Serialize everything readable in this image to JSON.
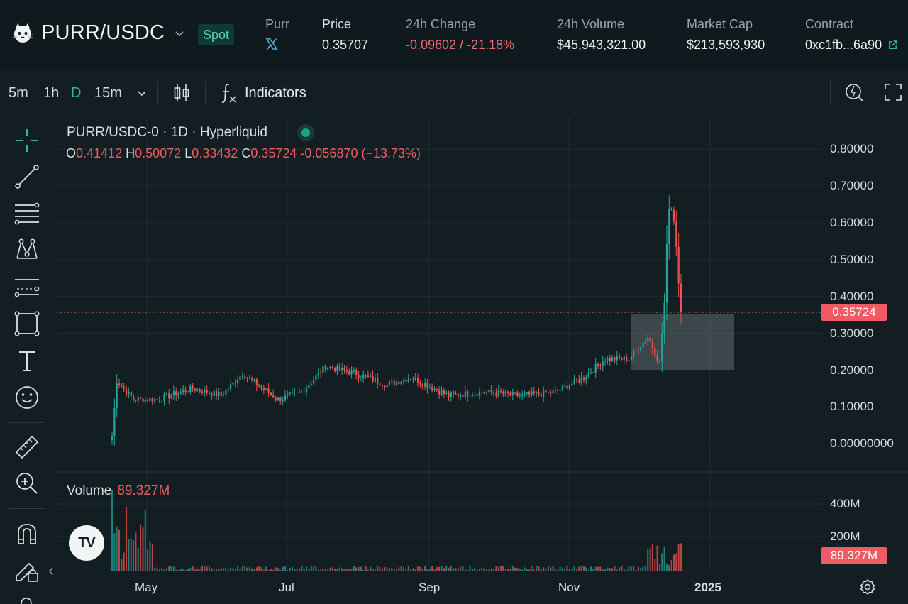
{
  "header": {
    "pair": "PURR/USDC",
    "market_type": "Spot",
    "purr_label": "Purr",
    "price_label": "Price",
    "price_value": "0.35707",
    "change_label": "24h Change",
    "change_value": "-0.09602 / -21.18%",
    "volume_label": "24h Volume",
    "volume_value": "$45,943,321.00",
    "cap_label": "Market Cap",
    "cap_value": "$213,593,930",
    "contract_label": "Contract",
    "contract_value": "0xc1fb...6a90"
  },
  "toolbar": {
    "timeframes": [
      "5m",
      "1h",
      "D",
      "15m"
    ],
    "active_timeframe": "D",
    "indicators_label": "Indicators"
  },
  "tools": [
    "crosshair-icon",
    "trendline-icon",
    "fib-retracement-icon",
    "pattern-icon",
    "prediction-icon",
    "rectangle-icon",
    "text-icon",
    "emoji-icon",
    "ruler-icon",
    "zoom-in-icon",
    "magnet-icon",
    "lock-drawings-icon"
  ],
  "legend": {
    "title": "PURR/USDC-0 · 1D · Hyperliquid",
    "o_label": "O",
    "o": "0.41412",
    "h_label": "H",
    "h": "0.50072",
    "l_label": "L",
    "l": "0.33432",
    "c_label": "C",
    "c": "0.35724",
    "change": "-0.056870 (−13.73%)"
  },
  "volume_legend": {
    "label": "Volume",
    "value": "89.327M"
  },
  "price_tag": "0.35724",
  "volume_tag": "89.327M",
  "colors": {
    "up": "#26a69a",
    "down": "#ef5350",
    "accent": "#2fb7a0"
  },
  "chart_data": {
    "type": "candlestick",
    "title": "PURR/USDC-0 · 1D · Hyperliquid",
    "y_ticks": [
      "0.80000",
      "0.70000",
      "0.60000",
      "0.50000",
      "0.40000",
      "0.30000",
      "0.20000",
      "0.10000",
      "0.00000000"
    ],
    "ylim": [
      0,
      0.8
    ],
    "x_ticks": [
      "May",
      "Jul",
      "Sep",
      "Nov",
      "2025"
    ],
    "volume_ticks": [
      "400M",
      "200M"
    ],
    "last_price": 0.35724,
    "series": [
      {
        "name": "PURR/USDC-0",
        "approx_close_path": [
          [
            "Apr 16",
            0.02
          ],
          [
            "Apr 18",
            0.17
          ],
          [
            "Apr 25",
            0.12
          ],
          [
            "May 5",
            0.12
          ],
          [
            "May 20",
            0.15
          ],
          [
            "Jun 1",
            0.13
          ],
          [
            "Jun 10",
            0.19
          ],
          [
            "Jun 25",
            0.12
          ],
          [
            "Jul 5",
            0.14
          ],
          [
            "Jul 15",
            0.21
          ],
          [
            "Jul 28",
            0.19
          ],
          [
            "Aug 10",
            0.16
          ],
          [
            "Aug 20",
            0.18
          ],
          [
            "Sep 5",
            0.13
          ],
          [
            "Sep 20",
            0.14
          ],
          [
            "Oct 5",
            0.13
          ],
          [
            "Oct 20",
            0.14
          ],
          [
            "Nov 1",
            0.18
          ],
          [
            "Nov 10",
            0.23
          ],
          [
            "Nov 20",
            0.23
          ],
          [
            "Nov 28",
            0.29
          ],
          [
            "Dec 3",
            0.22
          ],
          [
            "Dec 5",
            0.38
          ],
          [
            "Dec 7",
            0.66
          ],
          [
            "Dec 9",
            0.62
          ],
          [
            "Dec 11",
            0.46
          ],
          [
            "Dec 12",
            0.357
          ]
        ]
      }
    ]
  }
}
